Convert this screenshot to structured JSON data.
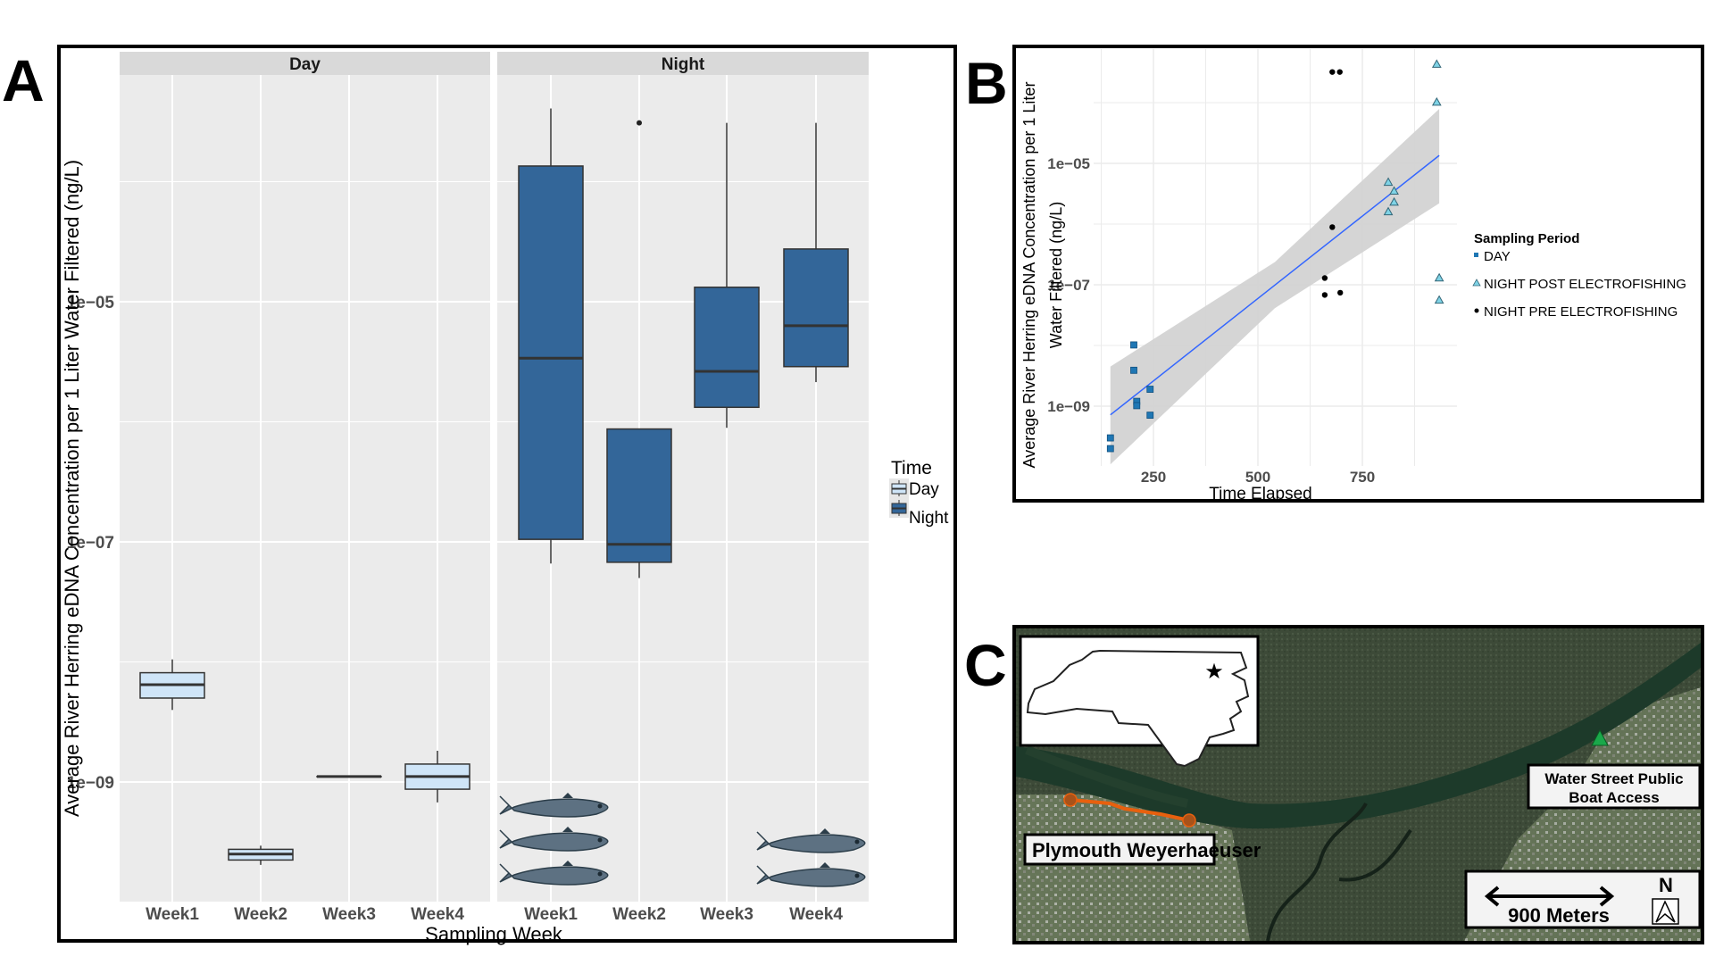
{
  "panel_labels": {
    "a": "A",
    "b": "B",
    "c": "C"
  },
  "chart_data": [
    {
      "id": "A",
      "type": "boxplot",
      "facets": [
        "Day",
        "Night"
      ],
      "categories": [
        "Week1",
        "Week2",
        "Week3",
        "Week4"
      ],
      "xlabel": "Sampling Week",
      "ylabel": "Average River Herring eDNA Concentration per 1 Liter Water Filtered (ng/L)",
      "yscale": "log10",
      "ylim": [
        1e-10,
        0.0008
      ],
      "yticks": [
        {
          "value": 1e-09,
          "label": "1e−09"
        },
        {
          "value": 1e-07,
          "label": "1e−07"
        },
        {
          "value": 1e-05,
          "label": "1e−05"
        }
      ],
      "grid": true,
      "legend": {
        "title": "Time",
        "position": "right",
        "entries": [
          {
            "label": "Day",
            "color": "#cfe5f8"
          },
          {
            "label": "Night",
            "color": "#336699"
          }
        ]
      },
      "series": [
        {
          "name": "Day",
          "color": "#cfe5f8",
          "boxes": [
            {
              "week": "Week1",
              "whisker_low": 3.98e-09,
              "q1": 5e-09,
              "median": 6.46e-09,
              "q3": 8.13e-09,
              "whisker_high": 1.05e-08,
              "outliers": []
            },
            {
              "week": "Week2",
              "whisker_low": 2.04e-10,
              "q1": 2.24e-10,
              "median": 2.51e-10,
              "q3": 2.75e-10,
              "whisker_high": 2.95e-10,
              "outliers": []
            },
            {
              "week": "Week3",
              "whisker_low": 1.11e-09,
              "q1": 1.11e-09,
              "median": 1.11e-09,
              "q3": 1.11e-09,
              "whisker_high": 1.11e-09,
              "outliers": []
            },
            {
              "week": "Week4",
              "whisker_low": 6.76e-10,
              "q1": 8.71e-10,
              "median": 1.11e-09,
              "q3": 1.41e-09,
              "whisker_high": 1.82e-09,
              "outliers": []
            }
          ]
        },
        {
          "name": "Night",
          "color": "#336699",
          "boxes": [
            {
              "week": "Week1",
              "whisker_low": 6.6e-08,
              "q1": 1.05e-07,
              "median": 3.39e-06,
              "q3": 0.000135,
              "whisker_high": 0.000407,
              "outliers": []
            },
            {
              "week": "Week2",
              "whisker_low": 5e-08,
              "q1": 6.76e-08,
              "median": 9.55e-08,
              "q3": 8.71e-07,
              "whisker_high": 8.71e-07,
              "outliers": [
                0.000309
              ]
            },
            {
              "week": "Week3",
              "whisker_low": 8.91e-07,
              "q1": 1.32e-06,
              "median": 2.63e-06,
              "q3": 1.32e-05,
              "whisker_high": 0.000309,
              "outliers": []
            },
            {
              "week": "Week4",
              "whisker_low": 2.14e-06,
              "q1": 2.88e-06,
              "median": 6.31e-06,
              "q3": 2.75e-05,
              "whisker_high": 0.000309,
              "outliers": []
            }
          ]
        }
      ],
      "annotations": {
        "fish_icons": {
          "Night-Week1": 3,
          "Night-Week4": 2
        }
      }
    },
    {
      "id": "B",
      "type": "scatter",
      "xlabel": "Time Elapsed",
      "ylabel": "Average River Herring eDNA Concentration per 1 Liter Water Filtered (ng/L)",
      "ylabel_lines": [
        "Average River Herring eDNA Concentration per 1 Liter",
        "Water Filtered (ng/L)"
      ],
      "yscale": "log10",
      "xlim": [
        115,
        985
      ],
      "ylim": [
        1e-10,
        0.00076
      ],
      "xticks": [
        250,
        500,
        750
      ],
      "yticks": [
        {
          "value": 1e-09,
          "label": "1e−09"
        },
        {
          "value": 1e-07,
          "label": "1e−07"
        },
        {
          "value": 1e-05,
          "label": "1e−05"
        }
      ],
      "grid": true,
      "legend": {
        "title": "Sampling Period",
        "position": "right"
      },
      "series": [
        {
          "name": "DAY",
          "marker": "square",
          "color": "#1f77b4",
          "points": [
            [
              147,
              3e-10
            ],
            [
              147,
              2e-10
            ],
            [
              203,
              1.02e-08
            ],
            [
              203,
              3.9e-09
            ],
            [
              210,
              1.2e-09
            ],
            [
              210,
              1.02e-09
            ],
            [
              242,
              1.9e-09
            ],
            [
              242,
              7.1e-10
            ]
          ]
        },
        {
          "name": "NIGHT POST ELECTROFISHING",
          "marker": "triangle",
          "color": "#7fd3e6",
          "points": [
            [
              928,
              0.00043
            ],
            [
              928,
              0.000102
            ],
            [
              812,
              4.9e-06
            ],
            [
              826,
              3.5e-06
            ],
            [
              826,
              2.3e-06
            ],
            [
              812,
              1.6e-06
            ],
            [
              934,
              1.3e-07
            ],
            [
              934,
              5.6e-08
            ]
          ]
        },
        {
          "name": "NIGHT PRE ELECTROFISHING",
          "marker": "circle",
          "color": "#000000",
          "points": [
            [
              678,
              0.00032
            ],
            [
              696,
              0.00032
            ],
            [
              678,
              8.9e-07
            ],
            [
              660,
              1.29e-07
            ],
            [
              660,
              6.8e-08
            ],
            [
              697,
              7.4e-08
            ]
          ]
        }
      ],
      "fit": {
        "type": "linear (log y)",
        "color": "#3366ff",
        "x": [
          147,
          934
        ],
        "y": [
          7.2e-10,
          1.35e-05
        ],
        "ci_upper": [
          4.5e-09,
          7.9e-05
        ],
        "ci_lower": [
          1.1e-10,
          2.2e-06
        ]
      }
    }
  ],
  "map": {
    "labels": {
      "site_1": "Plymouth Weyerhaeuser",
      "site_2_line1": "Water Street Public",
      "site_2_line2": "Boat Access",
      "scale": "900 Meters",
      "north": "N"
    },
    "colors": {
      "transect": "#e8600e",
      "boat_access_marker": "#1aa84a",
      "river": "#1d3a2a",
      "forest": "#3a4a36"
    },
    "inset": "North Carolina outline with star marking study site"
  }
}
